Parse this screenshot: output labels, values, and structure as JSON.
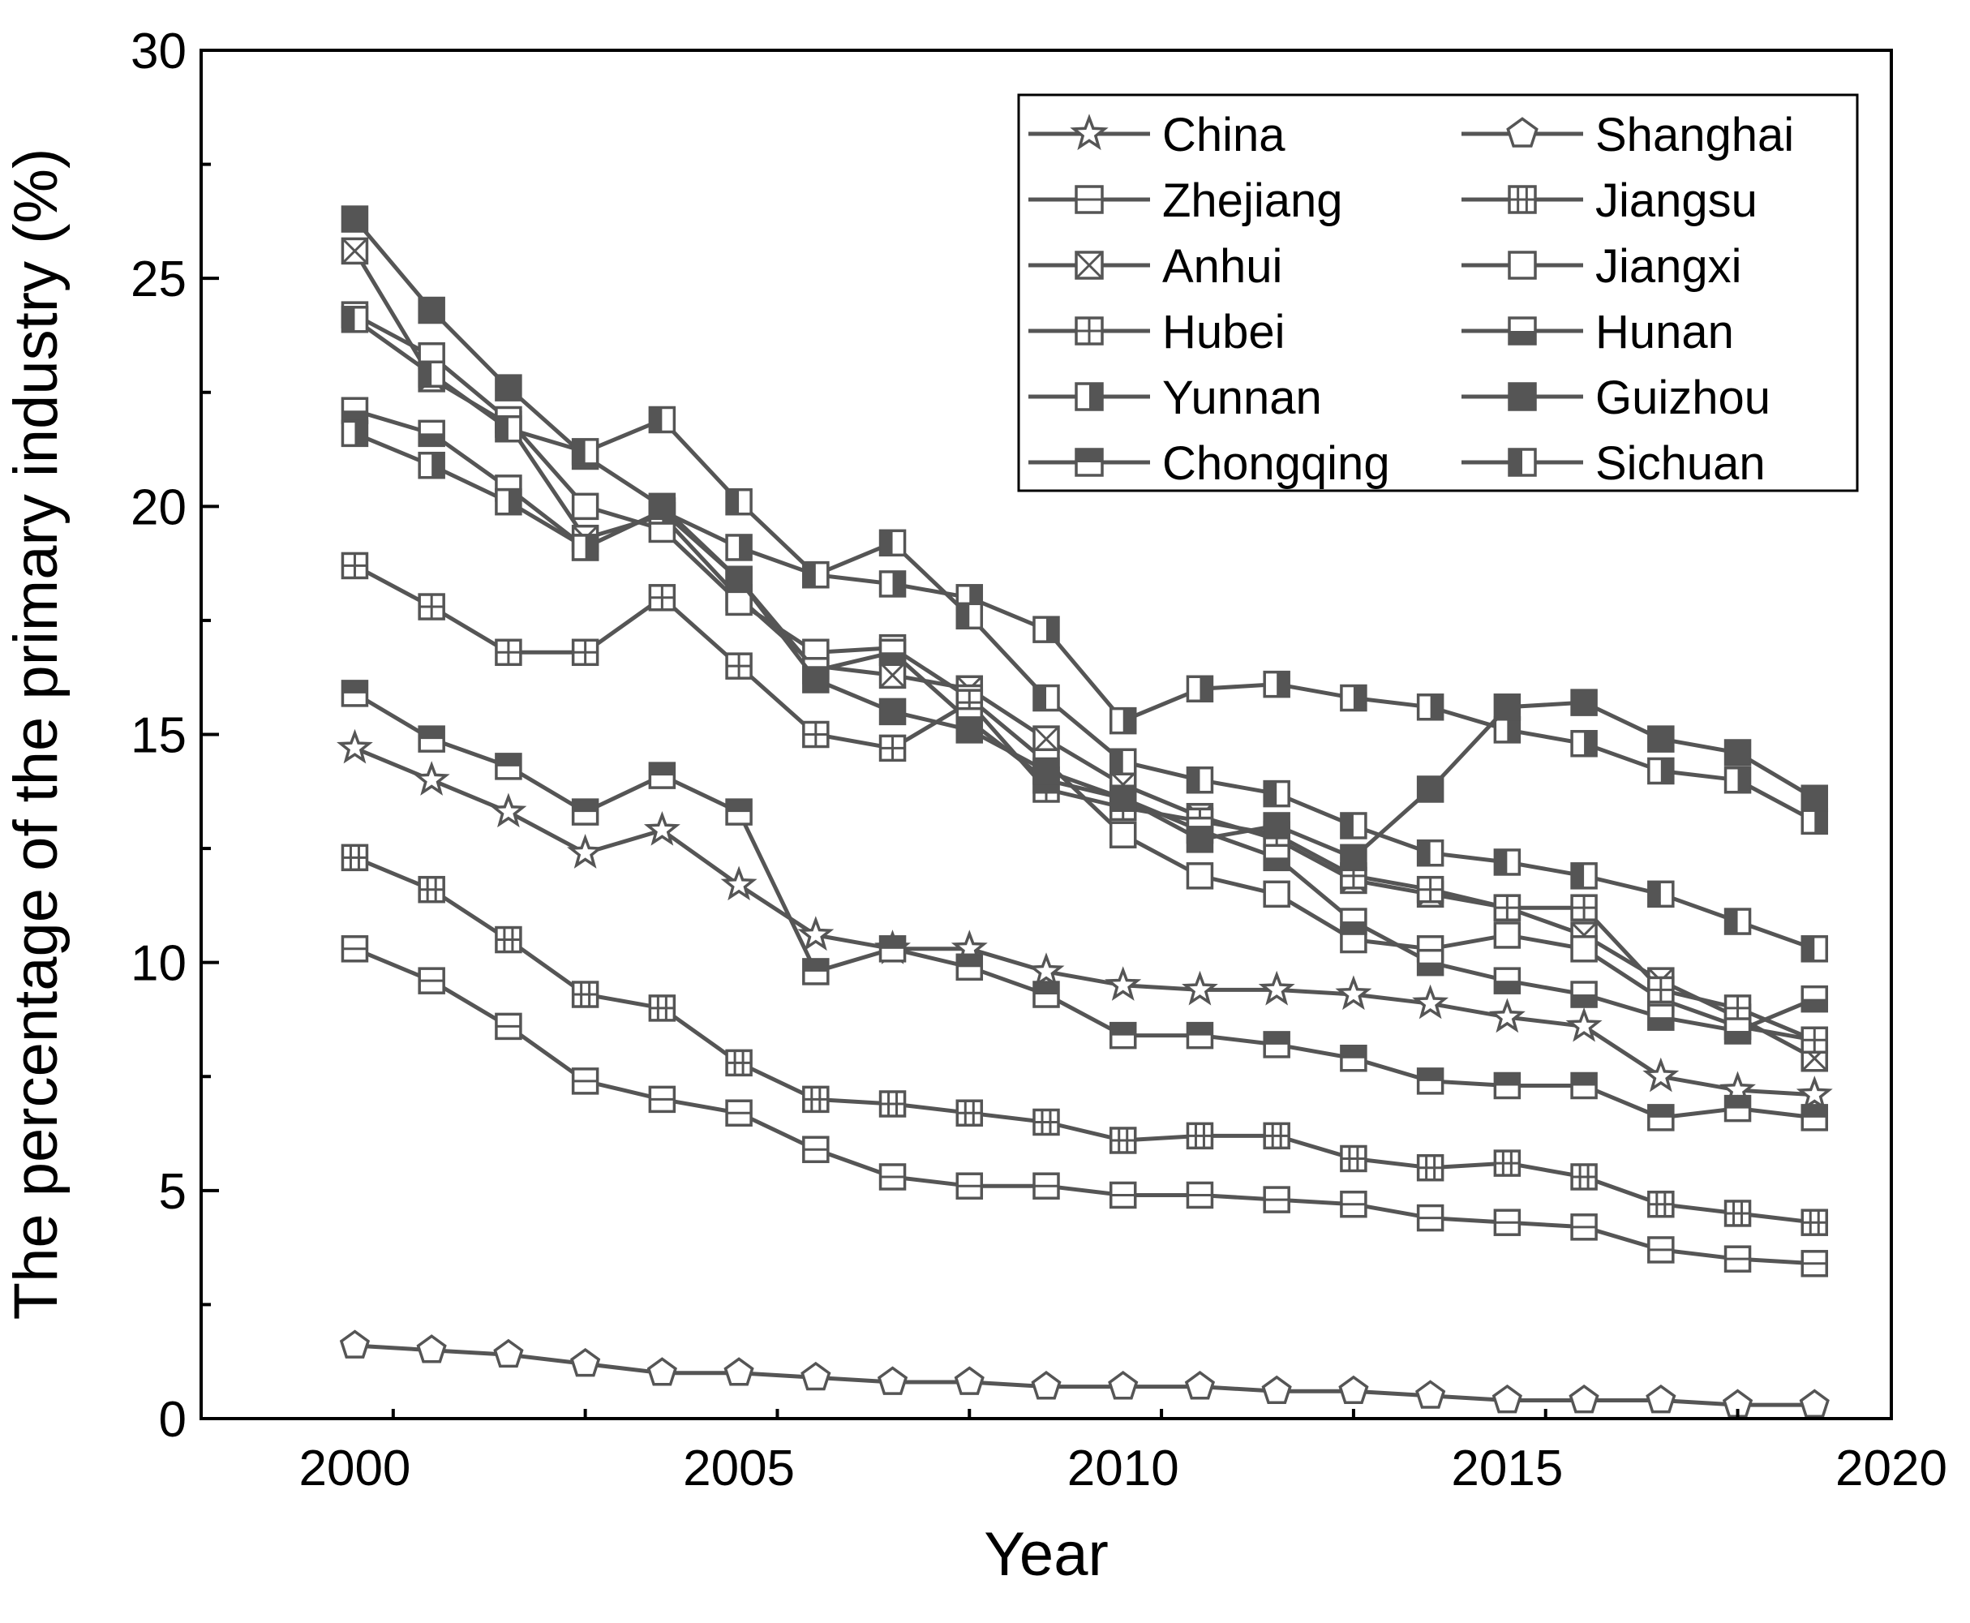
{
  "chart_data": {
    "type": "line",
    "title": "",
    "xlabel": "Year",
    "ylabel": "The percentage of the primary industry (%)",
    "xlim": [
      1998,
      2020
    ],
    "ylim": [
      0,
      30
    ],
    "x_ticks": [
      "2000",
      "2005",
      "2010",
      "2015",
      "2020"
    ],
    "y_ticks": [
      "0",
      "5",
      "10",
      "15",
      "20",
      "25",
      "30"
    ],
    "grid": false,
    "legend_position": "top-right",
    "line_color": "#555555",
    "x": [
      2000,
      2001,
      2002,
      2003,
      2004,
      2005,
      2006,
      2007,
      2008,
      2009,
      2010,
      2011,
      2012,
      2013,
      2014,
      2015,
      2016,
      2017,
      2018,
      2019
    ],
    "series": [
      {
        "name": "China",
        "marker": "star",
        "values": [
          14.7,
          14.0,
          13.3,
          12.4,
          12.9,
          11.7,
          10.6,
          10.3,
          10.3,
          9.8,
          9.5,
          9.4,
          9.4,
          9.3,
          9.1,
          8.8,
          8.6,
          7.5,
          7.2,
          7.1
        ]
      },
      {
        "name": "Shanghai",
        "marker": "pentagon",
        "values": [
          1.6,
          1.5,
          1.4,
          1.2,
          1.0,
          1.0,
          0.9,
          0.8,
          0.8,
          0.7,
          0.7,
          0.7,
          0.6,
          0.6,
          0.5,
          0.4,
          0.4,
          0.4,
          0.3,
          0.3
        ]
      },
      {
        "name": "Zhejiang",
        "marker": "square-hline",
        "values": [
          10.3,
          9.6,
          8.6,
          7.4,
          7.0,
          6.7,
          5.9,
          5.3,
          5.1,
          5.1,
          4.9,
          4.9,
          4.8,
          4.7,
          4.4,
          4.3,
          4.2,
          3.7,
          3.5,
          3.4
        ]
      },
      {
        "name": "Jiangsu",
        "marker": "square-grid",
        "values": [
          12.3,
          11.6,
          10.5,
          9.3,
          9.0,
          7.8,
          7.0,
          6.9,
          6.7,
          6.5,
          6.1,
          6.2,
          6.2,
          5.7,
          5.5,
          5.6,
          5.3,
          4.7,
          4.5,
          4.3
        ]
      },
      {
        "name": "Anhui",
        "marker": "square-x",
        "values": [
          25.6,
          22.8,
          21.8,
          19.3,
          19.8,
          18.0,
          16.5,
          16.3,
          16.0,
          14.9,
          13.9,
          13.2,
          12.7,
          11.8,
          11.5,
          11.2,
          10.6,
          9.6,
          8.8,
          7.9
        ]
      },
      {
        "name": "Jiangxi",
        "marker": "square-open",
        "values": [
          24.2,
          23.3,
          21.9,
          20.0,
          19.5,
          17.9,
          16.8,
          16.9,
          15.8,
          14.4,
          12.8,
          11.9,
          11.5,
          10.5,
          10.3,
          10.6,
          10.3,
          9.2,
          8.6,
          8.3
        ]
      },
      {
        "name": "Hubei",
        "marker": "square-cross",
        "values": [
          18.7,
          17.8,
          16.8,
          16.8,
          18.0,
          16.5,
          15.0,
          14.7,
          15.7,
          13.8,
          13.4,
          13.1,
          12.8,
          11.9,
          11.6,
          11.2,
          11.2,
          9.4,
          9.0,
          8.3
        ]
      },
      {
        "name": "Hunan",
        "marker": "square-bottom",
        "values": [
          22.1,
          21.6,
          20.4,
          19.1,
          19.9,
          18.4,
          16.4,
          16.8,
          15.3,
          14.0,
          13.6,
          12.9,
          12.3,
          10.9,
          10.0,
          9.6,
          9.3,
          8.8,
          8.5,
          9.2
        ]
      },
      {
        "name": "Yunnan",
        "marker": "square-right",
        "values": [
          21.6,
          20.9,
          20.1,
          19.1,
          19.9,
          19.1,
          18.5,
          18.3,
          18.0,
          17.3,
          15.3,
          16.0,
          16.1,
          15.8,
          15.6,
          15.1,
          14.8,
          14.2,
          14.0,
          13.1
        ]
      },
      {
        "name": "Guizhou",
        "marker": "square-filled",
        "values": [
          26.3,
          24.3,
          22.6,
          21.1,
          20.0,
          18.4,
          16.2,
          15.5,
          15.1,
          14.2,
          13.6,
          12.7,
          13.0,
          12.3,
          13.8,
          15.6,
          15.7,
          14.9,
          14.6,
          13.6
        ]
      },
      {
        "name": "Chongqing",
        "marker": "square-top",
        "values": [
          15.9,
          14.9,
          14.3,
          13.3,
          14.1,
          13.3,
          9.8,
          10.3,
          9.9,
          9.3,
          8.4,
          8.4,
          8.2,
          7.9,
          7.4,
          7.3,
          7.3,
          6.6,
          6.8,
          6.6
        ]
      },
      {
        "name": "Sichuan",
        "marker": "square-left",
        "values": [
          24.1,
          22.9,
          21.7,
          21.2,
          21.9,
          20.1,
          18.5,
          19.2,
          17.6,
          15.8,
          14.4,
          14.0,
          13.7,
          13.0,
          12.4,
          12.2,
          11.9,
          11.5,
          10.9,
          10.3
        ]
      }
    ]
  }
}
